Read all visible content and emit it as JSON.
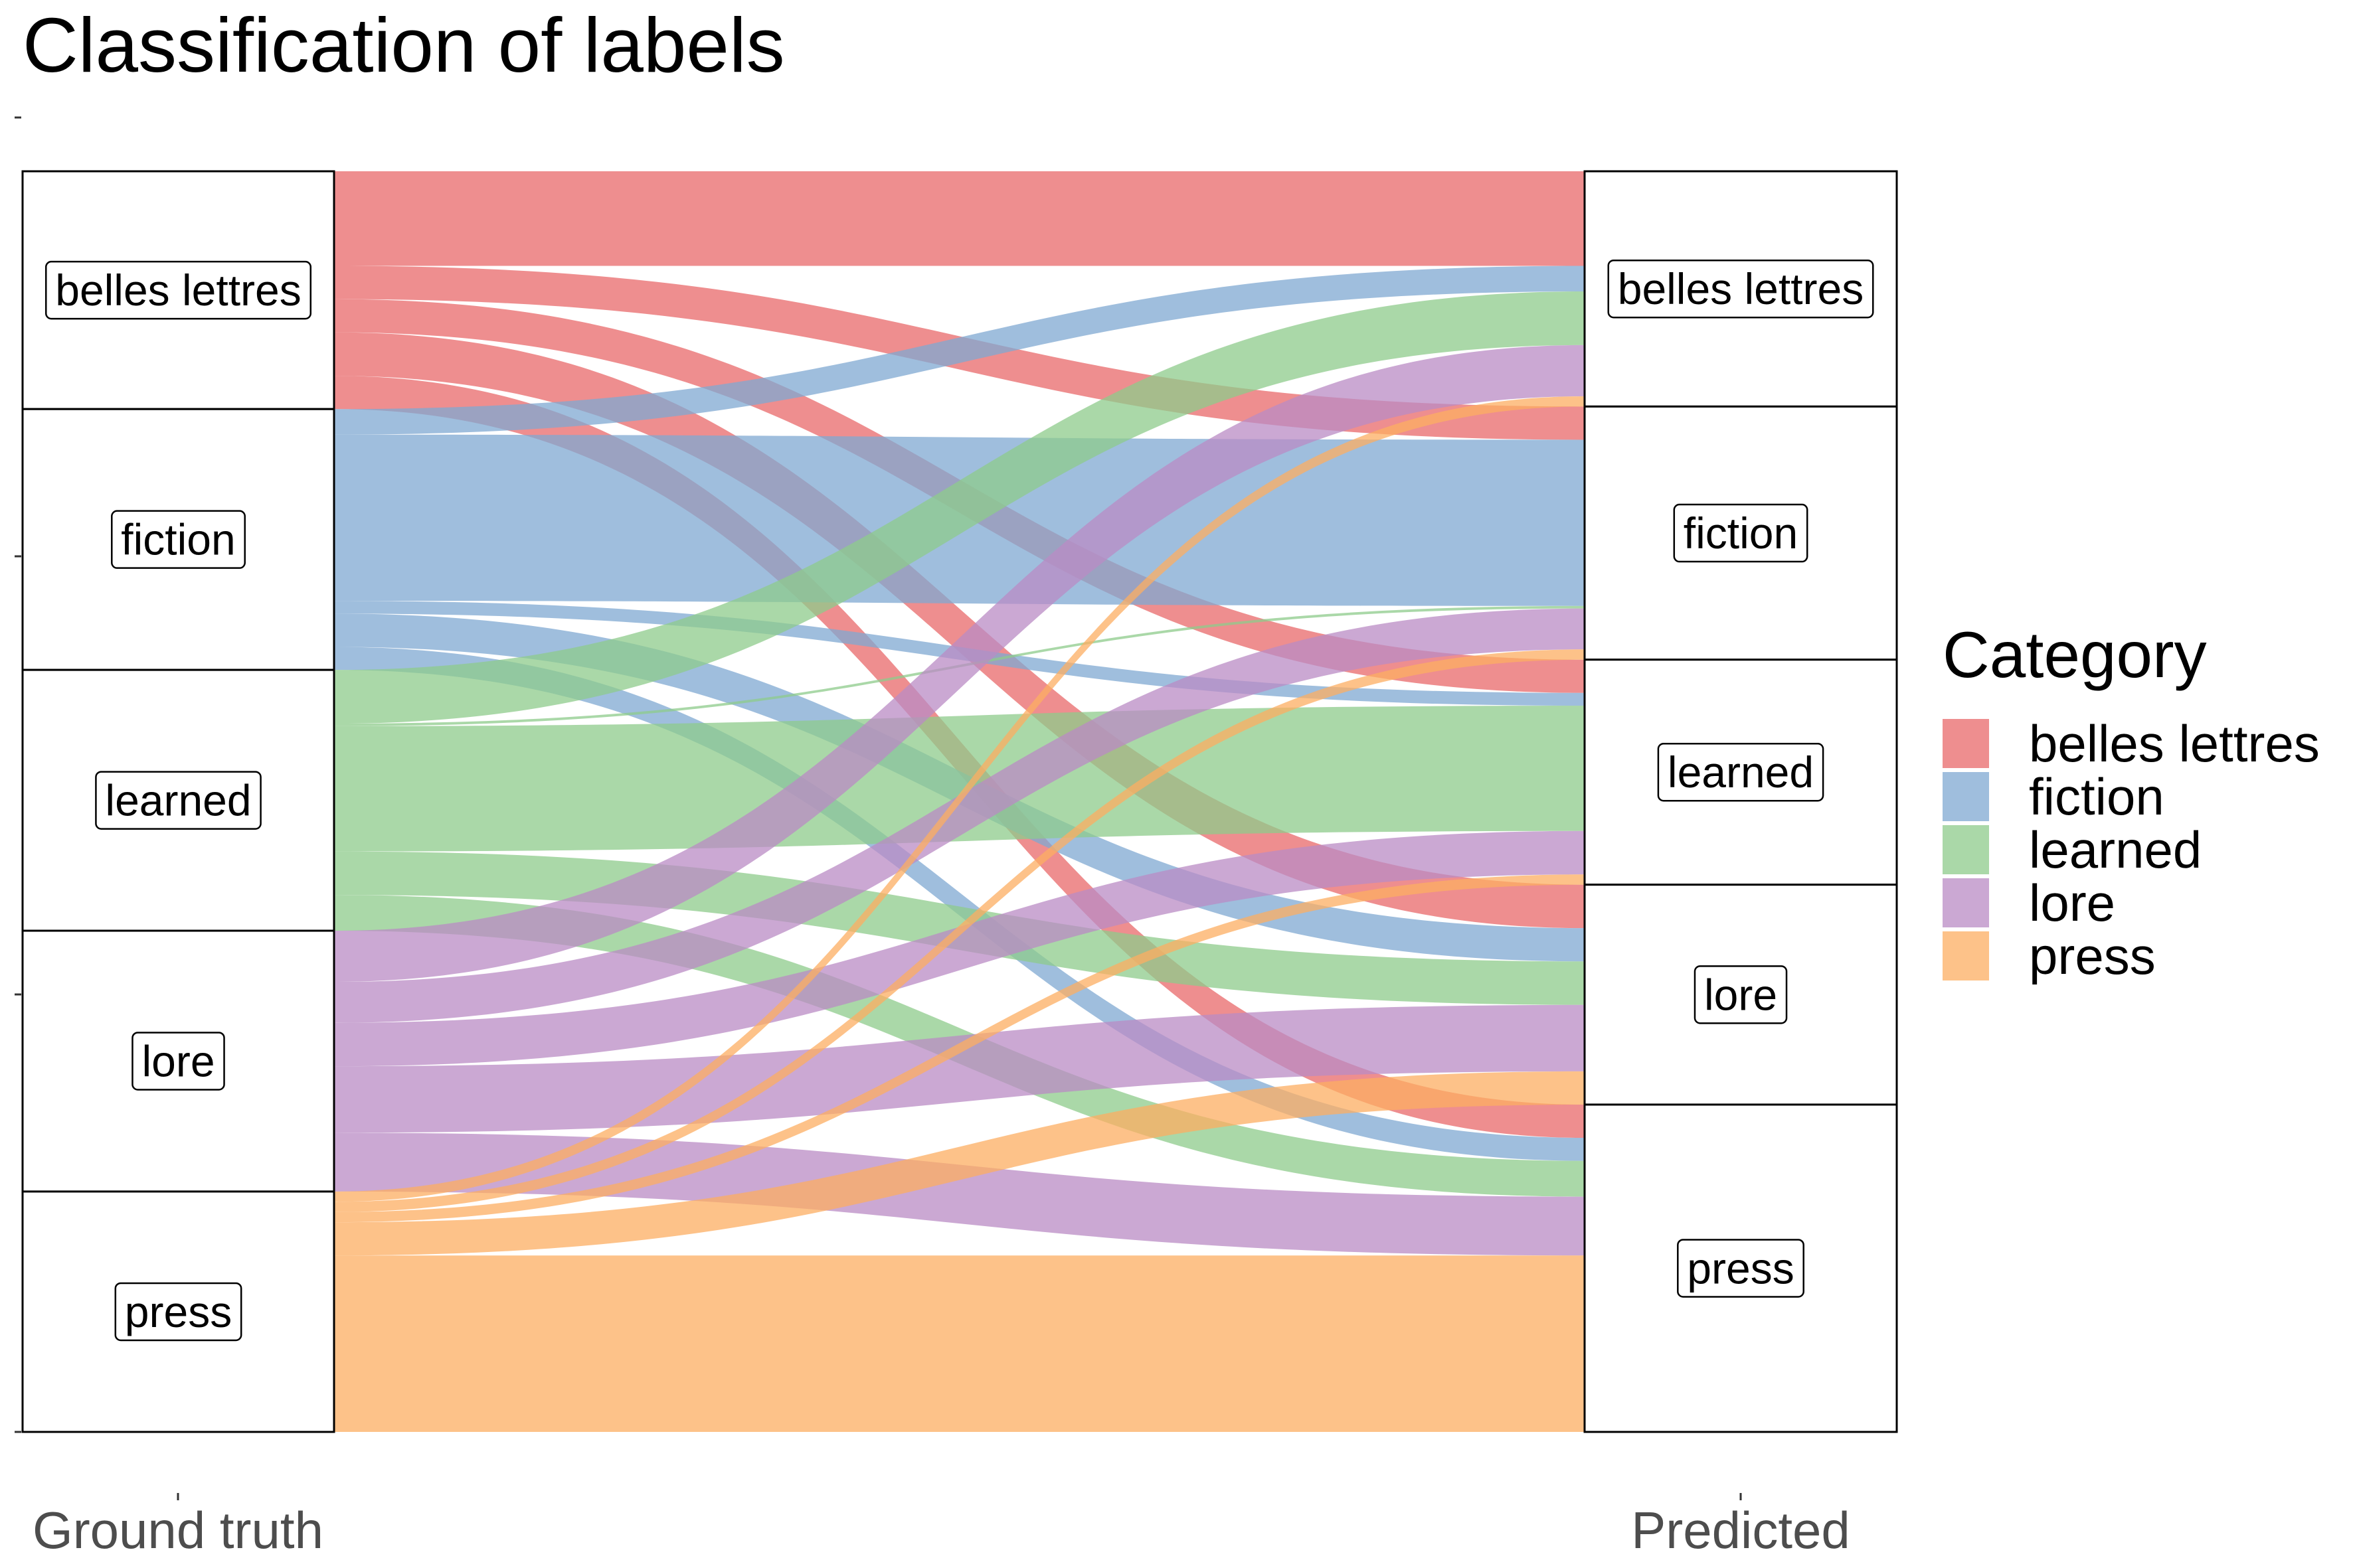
{
  "chart_data": {
    "type": "alluvial",
    "title": "Classification of labels",
    "axes": [
      "Ground truth",
      "Predicted"
    ],
    "categories": [
      "belles lettres",
      "fiction",
      "learned",
      "lore",
      "press"
    ],
    "colors": {
      "belles lettres": "#E8686A",
      "fiction": "#7FA8D1",
      "learned": "#8ECB8B",
      "lore": "#B98BC4",
      "press": "#FCAE62"
    },
    "flow_opacity": 0.75,
    "legend": {
      "title": "Category",
      "position": "right"
    },
    "flows": [
      {
        "from": "belles lettres",
        "to": "belles lettres",
        "value": 37
      },
      {
        "from": "belles lettres",
        "to": "fiction",
        "value": 13
      },
      {
        "from": "belles lettres",
        "to": "learned",
        "value": 13
      },
      {
        "from": "belles lettres",
        "to": "lore",
        "value": 17
      },
      {
        "from": "belles lettres",
        "to": "press",
        "value": 13
      },
      {
        "from": "fiction",
        "to": "belles lettres",
        "value": 10
      },
      {
        "from": "fiction",
        "to": "fiction",
        "value": 65
      },
      {
        "from": "fiction",
        "to": "learned",
        "value": 5
      },
      {
        "from": "fiction",
        "to": "lore",
        "value": 13
      },
      {
        "from": "fiction",
        "to": "press",
        "value": 9
      },
      {
        "from": "learned",
        "to": "belles lettres",
        "value": 21
      },
      {
        "from": "learned",
        "to": "fiction",
        "value": 1
      },
      {
        "from": "learned",
        "to": "learned",
        "value": 49
      },
      {
        "from": "learned",
        "to": "lore",
        "value": 17
      },
      {
        "from": "learned",
        "to": "press",
        "value": 14
      },
      {
        "from": "lore",
        "to": "belles lettres",
        "value": 20
      },
      {
        "from": "lore",
        "to": "fiction",
        "value": 16
      },
      {
        "from": "lore",
        "to": "learned",
        "value": 17
      },
      {
        "from": "lore",
        "to": "lore",
        "value": 26
      },
      {
        "from": "lore",
        "to": "press",
        "value": 23
      },
      {
        "from": "press",
        "to": "belles lettres",
        "value": 4
      },
      {
        "from": "press",
        "to": "fiction",
        "value": 4
      },
      {
        "from": "press",
        "to": "learned",
        "value": 4
      },
      {
        "from": "press",
        "to": "lore",
        "value": 13
      },
      {
        "from": "press",
        "to": "press",
        "value": 69
      }
    ]
  }
}
